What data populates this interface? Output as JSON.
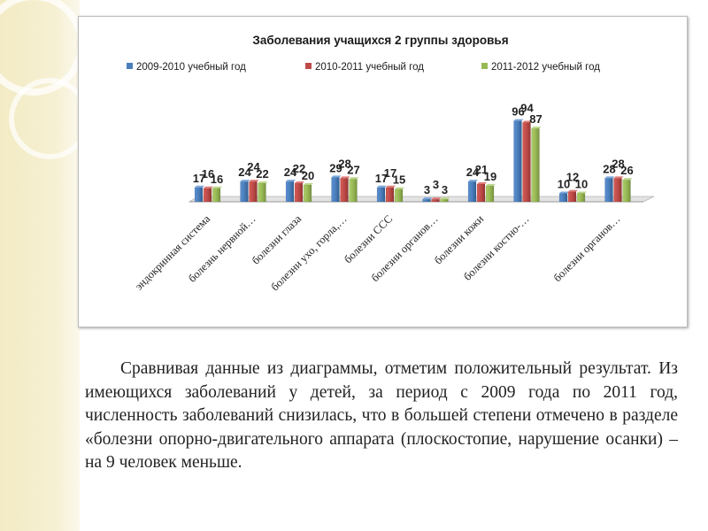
{
  "chart_data": {
    "type": "bar",
    "title": "Заболевания учащихся  2 группы здоровья",
    "categories": [
      "эндокринная система",
      "болезнь нервной…",
      "болезни глаза",
      "болезни ухо, горла,…",
      "болезни ССС",
      "болезни органов…",
      "болезни кожи",
      "болезни костно-…",
      "",
      "болезни органов…"
    ],
    "series": [
      {
        "name": "2009-2010  учебный год",
        "color": "#4a7ebb",
        "values": [
          17,
          24,
          24,
          29,
          17,
          3,
          24,
          96,
          10,
          28
        ]
      },
      {
        "name": "2010-2011  учебный год",
        "color": "#be4b48",
        "values": [
          16,
          24,
          22,
          28,
          17,
          3,
          21,
          94,
          12,
          28
        ]
      },
      {
        "name": "2011-2012  учебный год",
        "color": "#98b954",
        "values": [
          16,
          22,
          20,
          27,
          15,
          3,
          19,
          87,
          10,
          26
        ]
      }
    ],
    "xlabel": "",
    "ylabel": "",
    "ylim": [
      0,
      105
    ],
    "grid": false,
    "legend": "top"
  },
  "caption": "Сравнивая данные из диаграммы, отметим положительный результат. Из имеющихся заболеваний у детей,  за период с 2009 года по 2011 год,  численность заболеваний снизилась, что в большей степени отмечено в разделе «болезни  опорно-двигательного аппарата (плоскостопие,  нарушение осанки) – на 9 человек меньше."
}
